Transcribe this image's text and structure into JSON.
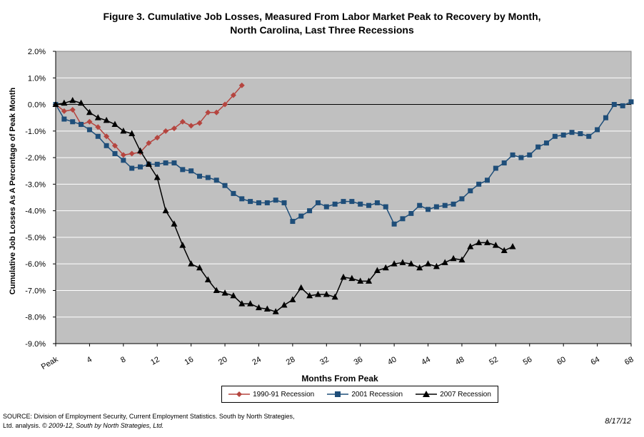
{
  "title_line1": "Figure 3. Cumulative Job Losses, Measured From Labor Market Peak to Recovery by Month,",
  "title_line2": "North Carolina, Last Three Recessions",
  "source_plain": "SOURCE: Division of Employment Security, Current Employment Statistics. South by North Strategies, Ltd. analysis.",
  "source_italic": "© 2009-12, South by North Strategies, Ltd.",
  "date": "8/17/12",
  "chart_data": {
    "type": "line",
    "title": "Figure 3. Cumulative Job Losses, Measured From Labor Market Peak to Recovery by Month, North Carolina, Last Three Recessions",
    "xlabel": "Months From Peak",
    "ylabel": "Cumulative Job Losses As A Percentage of Peak Month",
    "xlim": [
      0,
      68
    ],
    "ylim": [
      -9.0,
      2.0
    ],
    "x_tick_labels": [
      "Peak",
      "4",
      "8",
      "12",
      "16",
      "20",
      "24",
      "28",
      "32",
      "36",
      "40",
      "44",
      "48",
      "52",
      "56",
      "60",
      "64",
      "68"
    ],
    "y_tick_labels": [
      "2.0%",
      "1.0%",
      "0.0%",
      "-1.0%",
      "-2.0%",
      "-3.0%",
      "-4.0%",
      "-5.0%",
      "-6.0%",
      "-7.0%",
      "-8.0%",
      "-9.0%"
    ],
    "grid": true,
    "legend": "bottom",
    "background": "#c0c0c0",
    "series": [
      {
        "name": "1990-91 Recession",
        "color": "#b5453f",
        "marker": "diamond",
        "values": [
          0.0,
          -0.25,
          -0.2,
          -0.75,
          -0.65,
          -0.85,
          -1.2,
          -1.55,
          -1.9,
          -1.85,
          -1.8,
          -1.45,
          -1.25,
          -1.0,
          -0.9,
          -0.65,
          -0.8,
          -0.7,
          -0.3,
          -0.3,
          0.0,
          0.35,
          0.72
        ]
      },
      {
        "name": "2001 Recession",
        "color": "#1f4e79",
        "marker": "square",
        "values": [
          0.0,
          -0.55,
          -0.65,
          -0.75,
          -0.95,
          -1.2,
          -1.55,
          -1.85,
          -2.1,
          -2.4,
          -2.35,
          -2.25,
          -2.25,
          -2.2,
          -2.2,
          -2.45,
          -2.5,
          -2.7,
          -2.75,
          -2.85,
          -3.05,
          -3.35,
          -3.55,
          -3.65,
          -3.7,
          -3.7,
          -3.6,
          -3.7,
          -4.4,
          -4.2,
          -4.0,
          -3.7,
          -3.85,
          -3.75,
          -3.65,
          -3.65,
          -3.75,
          -3.8,
          -3.7,
          -3.85,
          -4.5,
          -4.3,
          -4.1,
          -3.8,
          -3.95,
          -3.85,
          -3.8,
          -3.75,
          -3.55,
          -3.25,
          -3.0,
          -2.85,
          -2.4,
          -2.2,
          -1.9,
          -2.0,
          -1.9,
          -1.6,
          -1.45,
          -1.2,
          -1.15,
          -1.05,
          -1.1,
          -1.2,
          -0.95,
          -0.5,
          0.0,
          -0.05,
          0.1
        ]
      },
      {
        "name": "2007 Recession",
        "color": "#000000",
        "marker": "triangle",
        "values": [
          0.0,
          0.05,
          0.15,
          0.05,
          -0.3,
          -0.5,
          -0.6,
          -0.75,
          -1.0,
          -1.1,
          -1.75,
          -2.25,
          -2.75,
          -4.0,
          -4.5,
          -5.3,
          -6.0,
          -6.15,
          -6.6,
          -7.0,
          -7.1,
          -7.2,
          -7.5,
          -7.5,
          -7.65,
          -7.7,
          -7.8,
          -7.55,
          -7.35,
          -6.9,
          -7.2,
          -7.15,
          -7.15,
          -7.25,
          -6.5,
          -6.55,
          -6.65,
          -6.65,
          -6.25,
          -6.15,
          -6.0,
          -5.95,
          -6.0,
          -6.15,
          -6.0,
          -6.1,
          -5.95,
          -5.8,
          -5.85,
          -5.35,
          -5.2,
          -5.2,
          -5.3,
          -5.5,
          -5.35
        ]
      }
    ]
  }
}
